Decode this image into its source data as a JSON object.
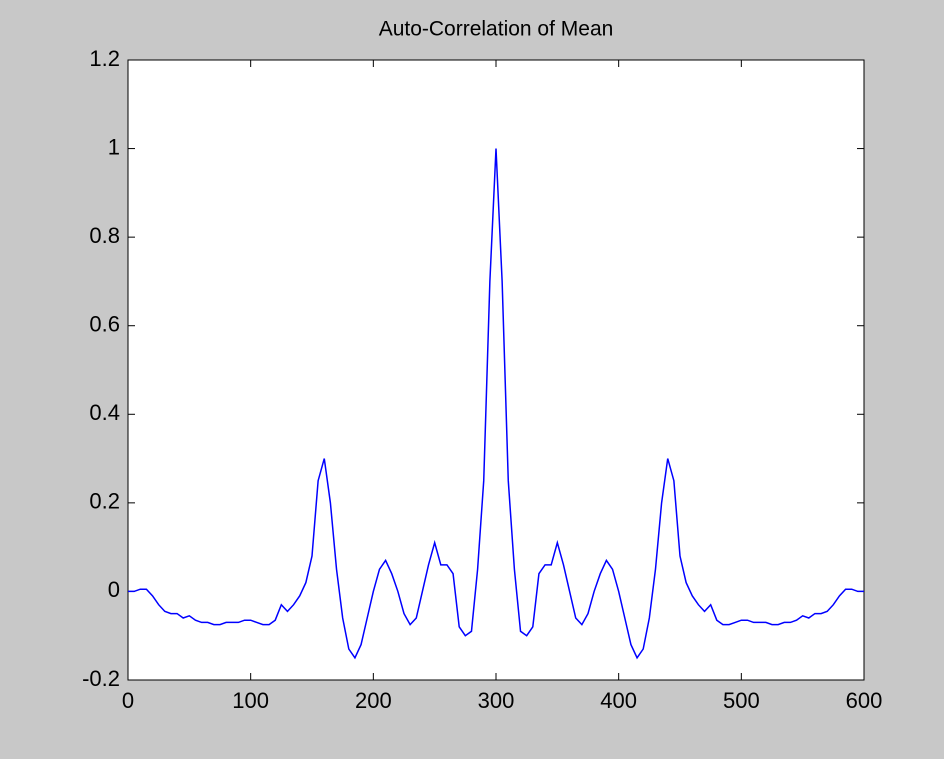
{
  "chart_data": {
    "type": "line",
    "title": "Auto-Correlation of Mean",
    "x": [
      0,
      5,
      10,
      15,
      20,
      25,
      30,
      35,
      40,
      45,
      50,
      55,
      60,
      65,
      70,
      75,
      80,
      85,
      90,
      95,
      100,
      105,
      110,
      115,
      120,
      125,
      130,
      135,
      140,
      145,
      150,
      155,
      160,
      165,
      170,
      175,
      180,
      185,
      190,
      195,
      200,
      205,
      210,
      215,
      220,
      225,
      230,
      235,
      240,
      245,
      250,
      255,
      260,
      265,
      270,
      275,
      280,
      285,
      290,
      295,
      300,
      305,
      310,
      315,
      320,
      325,
      330,
      335,
      340,
      345,
      350,
      355,
      360,
      365,
      370,
      375,
      380,
      385,
      390,
      395,
      400,
      405,
      410,
      415,
      420,
      425,
      430,
      435,
      440,
      445,
      450,
      455,
      460,
      465,
      470,
      475,
      480,
      485,
      490,
      495,
      500,
      505,
      510,
      515,
      520,
      525,
      530,
      535,
      540,
      545,
      550,
      555,
      560,
      565,
      570,
      575,
      580,
      585,
      590,
      595,
      600
    ],
    "series": [
      {
        "color": "#0000ff",
        "values": [
          0,
          0,
          0.005,
          0.005,
          -0.01,
          -0.03,
          -0.045,
          -0.05,
          -0.05,
          -0.06,
          -0.055,
          -0.065,
          -0.07,
          -0.07,
          -0.075,
          -0.075,
          -0.07,
          -0.07,
          -0.07,
          -0.065,
          -0.065,
          -0.07,
          -0.075,
          -0.075,
          -0.065,
          -0.03,
          -0.045,
          -0.03,
          -0.01,
          0.02,
          0.08,
          0.25,
          0.3,
          0.2,
          0.05,
          -0.06,
          -0.13,
          -0.15,
          -0.12,
          -0.06,
          0,
          0.05,
          0.07,
          0.04,
          0,
          -0.05,
          -0.075,
          -0.06,
          0,
          0.06,
          0.11,
          0.06,
          0.06,
          0.04,
          -0.08,
          -0.1,
          -0.09,
          0.05,
          0.25,
          0.7,
          1.0,
          0.7,
          0.25,
          0.05,
          -0.09,
          -0.1,
          -0.08,
          0.04,
          0.06,
          0.06,
          0.11,
          0.06,
          0,
          -0.06,
          -0.075,
          -0.05,
          0,
          0.04,
          0.07,
          0.05,
          0,
          -0.06,
          -0.12,
          -0.15,
          -0.13,
          -0.06,
          0.05,
          0.2,
          0.3,
          0.25,
          0.08,
          0.02,
          -0.01,
          -0.03,
          -0.045,
          -0.03,
          -0.065,
          -0.075,
          -0.075,
          -0.07,
          -0.065,
          -0.065,
          -0.07,
          -0.07,
          -0.07,
          -0.075,
          -0.075,
          -0.07,
          -0.07,
          -0.065,
          -0.055,
          -0.06,
          -0.05,
          -0.05,
          -0.045,
          -0.03,
          -0.01,
          0.005,
          0.005,
          0,
          0
        ]
      }
    ],
    "xlim": [
      0,
      600
    ],
    "xticks": [
      0,
      100,
      200,
      300,
      400,
      500,
      600
    ],
    "ylim": [
      -0.2,
      1.2
    ],
    "yticks": [
      -0.2,
      0,
      0.2,
      0.4,
      0.6,
      0.8,
      1,
      1.2
    ]
  }
}
